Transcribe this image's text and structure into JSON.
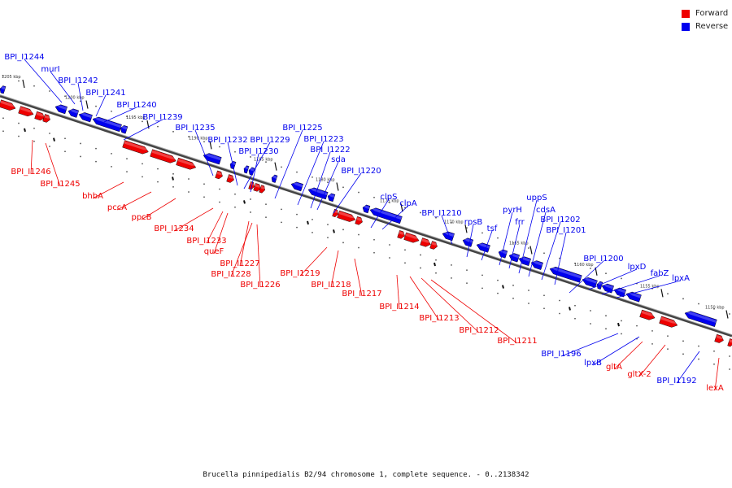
{
  "colors": {
    "forward": "#ee0000",
    "reverse": "#0000ee",
    "axis": "#444444"
  },
  "legend": {
    "forward_label": "Forward",
    "reverse_label": "Reverse"
  },
  "caption": "Brucella pinnipedialis B2/94 chromosome 1, complete sequence. - 0..2138342",
  "scale_labels": [
    "1205 kbp",
    "1200 kbp",
    "1195 kbp",
    "1190 kbp",
    "1185 kbp",
    "1180 kbp",
    "1175 kbp",
    "1170 kbp",
    "1165 kbp",
    "1160 kbp",
    "1155 kbp",
    "1150 kbp"
  ],
  "reverse_genes": [
    "BPI_I1244",
    "murI",
    "BPI_I1242",
    "BPI_I1241",
    "BPI_I1240",
    "BPI_I1239",
    "BPI_I1235",
    "BPI_I1232",
    "BPI_I1229",
    "BPI_I1230",
    "BPI_I1225",
    "BPI_I1223",
    "BPI_I1222",
    "sda",
    "BPI_I1220",
    "clpS",
    "clpA",
    "BPI_I1210",
    "rpsB",
    "tsf",
    "pyrH",
    "frr",
    "uppS",
    "cdsA",
    "BPI_I1202",
    "BPI_I1201",
    "BPI_I1200",
    "lpxD",
    "fabZ",
    "lpxA",
    "BPI_I1196",
    "lpxB",
    "BPI_I1192"
  ],
  "forward_genes": [
    "BPI_I1246",
    "BPI_I1245",
    "bhbA",
    "pccA",
    "ppcB",
    "BPI_I1234",
    "BPI_I1233",
    "queF",
    "BPI_I1227",
    "BPI_I1228",
    "BPI_I1226",
    "BPI_I1219",
    "BPI_I1218",
    "BPI_I1217",
    "BPI_I1214",
    "BPI_I1213",
    "BPI_I1212",
    "BPI_I1211",
    "gltA",
    "gltX-2",
    "lexA"
  ]
}
